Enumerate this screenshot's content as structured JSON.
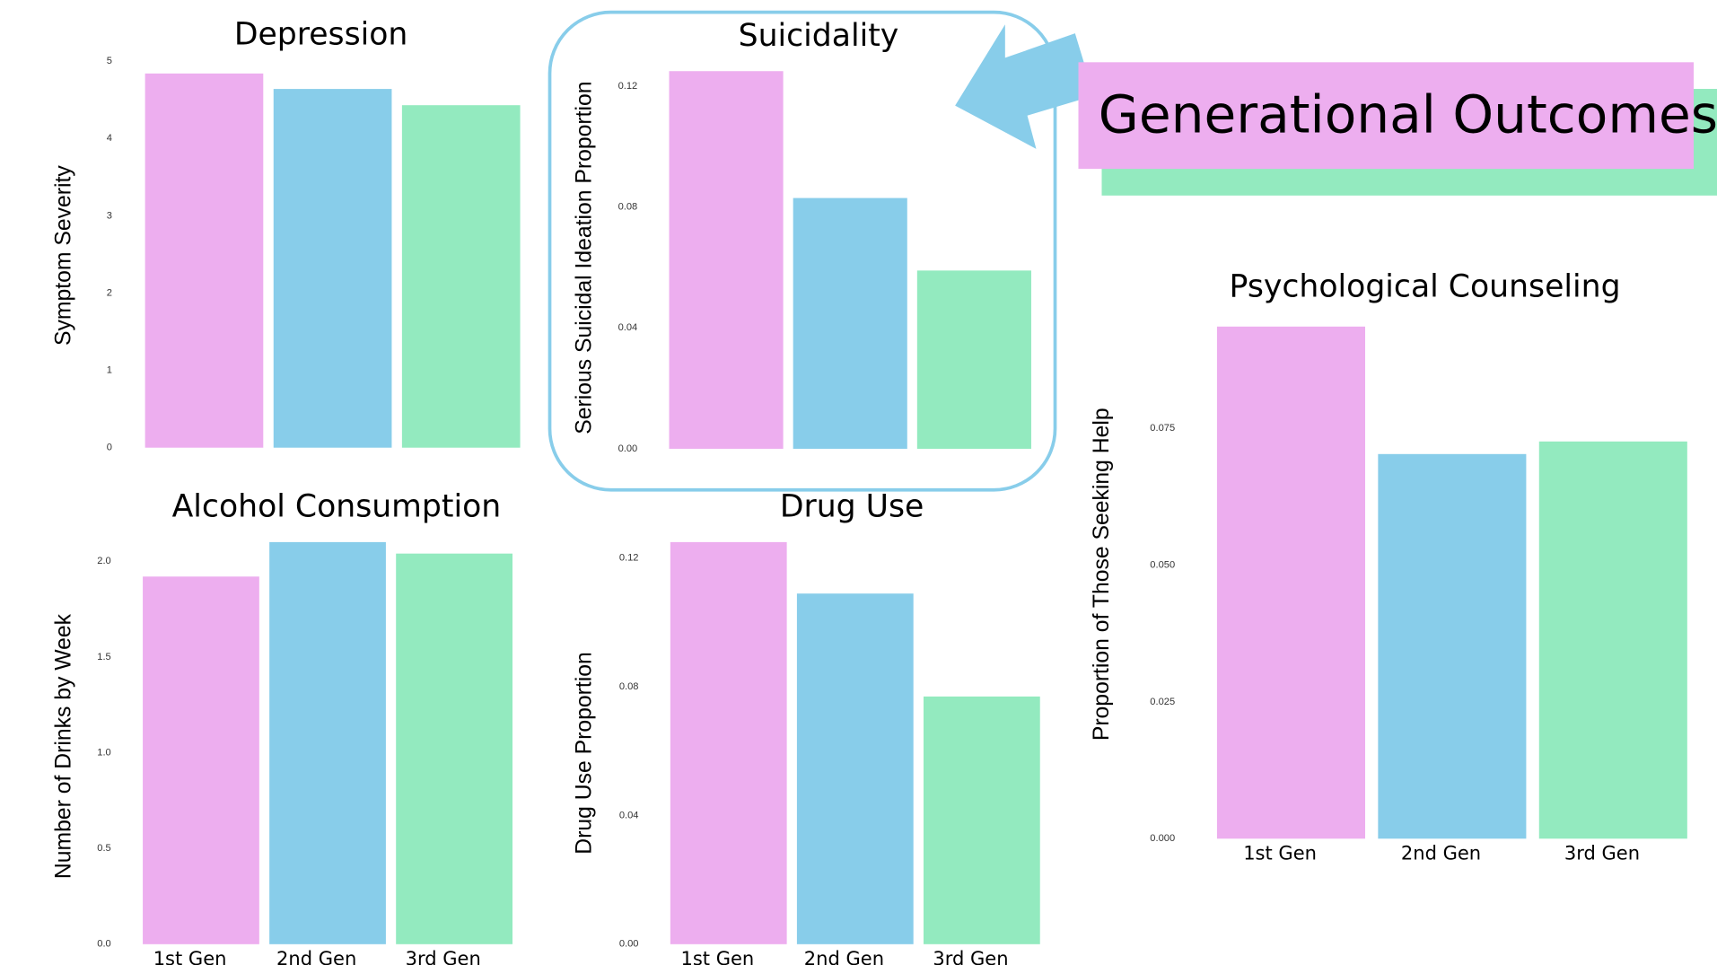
{
  "header": {
    "title": "Generational Outcomes"
  },
  "chart_data": [
    {
      "type": "bar",
      "title": "Depression",
      "ylabel": "Symptom Severity",
      "categories": [
        null,
        null,
        null
      ],
      "values": [
        4.84,
        4.64,
        4.43
      ],
      "colors": [
        "#edaeef",
        "#88cdea",
        "#93eabf"
      ],
      "ylim": [
        0,
        5
      ],
      "yticks": [
        0,
        1,
        2,
        3,
        4,
        5
      ]
    },
    {
      "type": "bar",
      "title": "Suicidality",
      "ylabel": "Serious Suicidal Ideation Proportion",
      "categories": [
        null,
        null,
        null
      ],
      "values": [
        0.125,
        0.083,
        0.059
      ],
      "colors": [
        "#edaeef",
        "#88cdea",
        "#93eabf"
      ],
      "ylim": [
        0,
        0.125
      ],
      "yticks": [
        {
          "value": 0,
          "label": "0.00"
        },
        {
          "value": 0.04,
          "label": "0.04"
        },
        {
          "value": 0.08,
          "label": "0.08"
        },
        {
          "value": 0.12,
          "label": "0.12"
        }
      ]
    },
    {
      "type": "bar",
      "title": "Alcohol Consumption",
      "ylabel": "Number of Drinks by Week",
      "categories": [
        "1st Gen",
        "2nd Gen",
        "3rd Gen"
      ],
      "values": [
        1.92,
        2.1,
        2.04
      ],
      "colors": [
        "#edaeef",
        "#88cdea",
        "#93eabf"
      ],
      "ylim": [
        0,
        2.1
      ],
      "yticks": [
        {
          "value": 0,
          "label": "0.0"
        },
        {
          "value": 0.5,
          "label": "0.5"
        },
        {
          "value": 1,
          "label": "1.0"
        },
        {
          "value": 1.5,
          "label": "1.5"
        },
        {
          "value": 2,
          "label": "2.0"
        }
      ]
    },
    {
      "type": "bar",
      "title": "Drug Use",
      "ylabel": "Drug Use Proportion",
      "categories": [
        "1st Gen",
        "2nd Gen",
        "3rd Gen"
      ],
      "values": [
        0.125,
        0.109,
        0.077
      ],
      "colors": [
        "#edaeef",
        "#88cdea",
        "#93eabf"
      ],
      "ylim": [
        0,
        0.125
      ],
      "yticks": [
        {
          "value": 0,
          "label": "0.00"
        },
        {
          "value": 0.04,
          "label": "0.04"
        },
        {
          "value": 0.08,
          "label": "0.08"
        },
        {
          "value": 0.12,
          "label": "0.12"
        }
      ]
    },
    {
      "type": "bar",
      "title": "Psychological Counseling",
      "ylabel": "Proportion of Those Seeking Help",
      "categories": [
        "1st Gen",
        "2nd Gen",
        "3rd Gen"
      ],
      "values": [
        0.0936,
        0.0703,
        0.0726
      ],
      "colors": [
        "#edaeef",
        "#88cdea",
        "#93eabf"
      ],
      "ylim": [
        0,
        0.094
      ],
      "yticks": [
        {
          "value": 0,
          "label": "0.000"
        },
        {
          "value": 0.025,
          "label": "0.025"
        },
        {
          "value": 0.05,
          "label": "0.050"
        },
        {
          "value": 0.075,
          "label": "0.075"
        }
      ]
    }
  ]
}
